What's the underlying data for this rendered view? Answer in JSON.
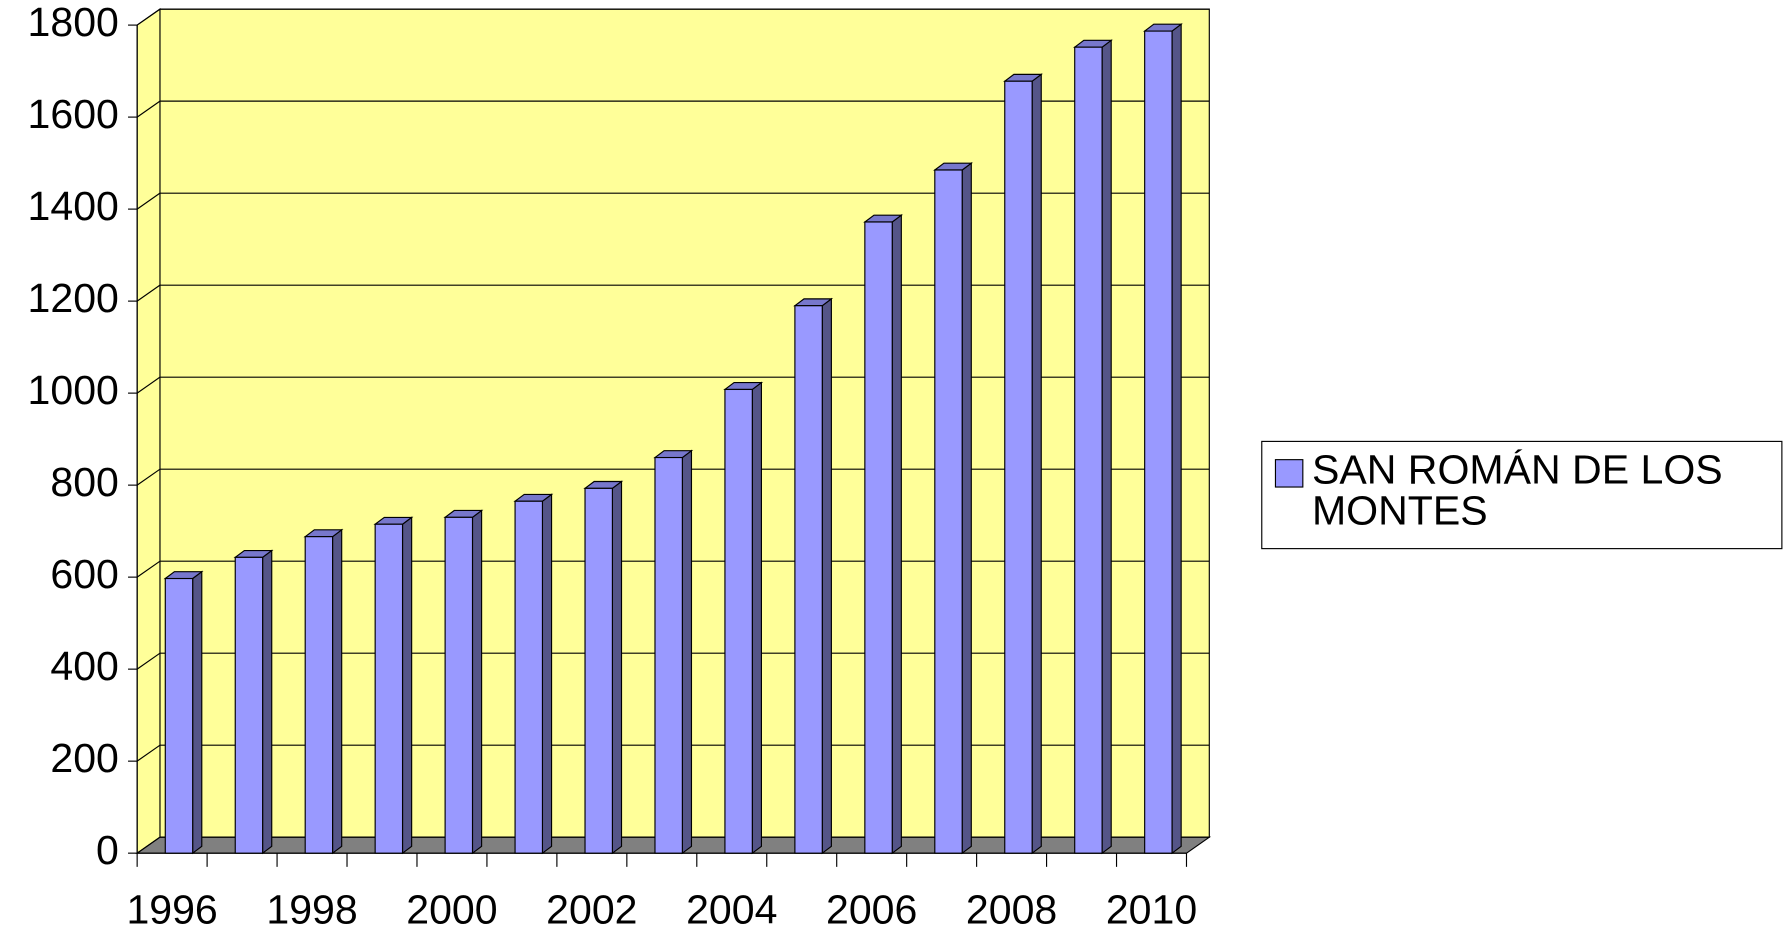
{
  "chart_data": {
    "type": "bar3d",
    "categories": [
      "1996",
      null,
      "1998",
      null,
      "2000",
      null,
      "2002",
      null,
      "2004",
      null,
      "2006",
      null,
      "2008",
      null,
      "2010"
    ],
    "series": [
      {
        "name": "SAN ROMÁN DE LOS MONTES",
        "color": "#9999ff",
        "values": [
          597,
          643,
          688,
          715,
          730,
          765,
          793,
          860,
          1008,
          1190,
          1372,
          1485,
          1678,
          1752,
          1787
        ]
      }
    ],
    "ylim": [
      0,
      1800
    ],
    "yticks": [
      0,
      200,
      400,
      600,
      800,
      1000,
      1200,
      1400,
      1600,
      1800
    ],
    "grid": true,
    "wall_color": "#ffff99",
    "floor_color": "#808080",
    "legend": "right"
  }
}
